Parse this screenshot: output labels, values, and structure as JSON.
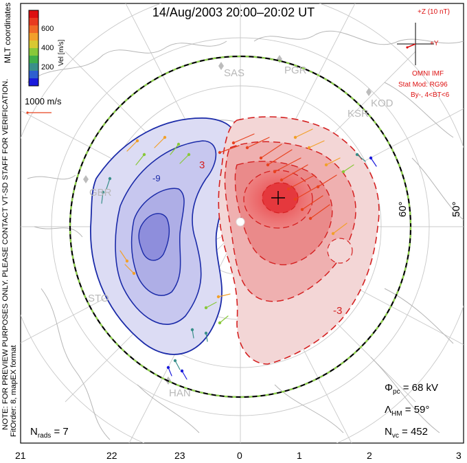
{
  "title": "14/Aug/2003 20:00–20:02 UT",
  "coordinates_label": "MLT coordinates",
  "colorbar": {
    "label": "Vel [m/s]",
    "ticks": [
      "600",
      "400",
      "200"
    ],
    "colors": [
      "#1a1adc",
      "#2e5fd0",
      "#3a8f8a",
      "#3fae4a",
      "#88c83a",
      "#d8c832",
      "#f2a02a",
      "#f06a26",
      "#e83a1f",
      "#dd1010"
    ]
  },
  "reference_vector": "1000 m/s",
  "imf_panel": {
    "z_label": "+Z (10 nT)",
    "y_label": "+Y",
    "source": "OMNI IMF",
    "stat_mod": "Stat Mod: RG96",
    "condition": "By-, 4<BT<6"
  },
  "stations": [
    "SAS",
    "PGR",
    "KSR",
    "KOD",
    "GBR",
    "STO",
    "HAN"
  ],
  "latitude_labels": [
    "60°",
    "50°"
  ],
  "mlt_labels": [
    "21",
    "22",
    "23",
    "0",
    "1",
    "2",
    "3"
  ],
  "contour_labels": [
    "-9",
    "3",
    "-3"
  ],
  "notes": {
    "preview": "NOTE: FOR PREVIEW PURPOSES ONLY. PLEASE CONTACT VT-SD STAFF FOR VERIFICATION.",
    "fitorder": "FitOrder: 8, mapEX format"
  },
  "stats": {
    "phi_pc_symbol": "Φ",
    "phi_pc_sub": "pc",
    "phi_pc_value": "= 68 kV",
    "lambda_hm_symbol": "Λ",
    "lambda_hm_sub": "HM",
    "lambda_hm_value": "= 59°",
    "n_vc_symbol": "N",
    "n_vc_sub": "vc",
    "n_vc_value": "= 452",
    "n_rads_symbol": "N",
    "n_rads_sub": "rads",
    "n_rads_value": "= 7"
  },
  "potential": {
    "negative_color": "#2a2aa8",
    "positive_color": "#d42020"
  }
}
